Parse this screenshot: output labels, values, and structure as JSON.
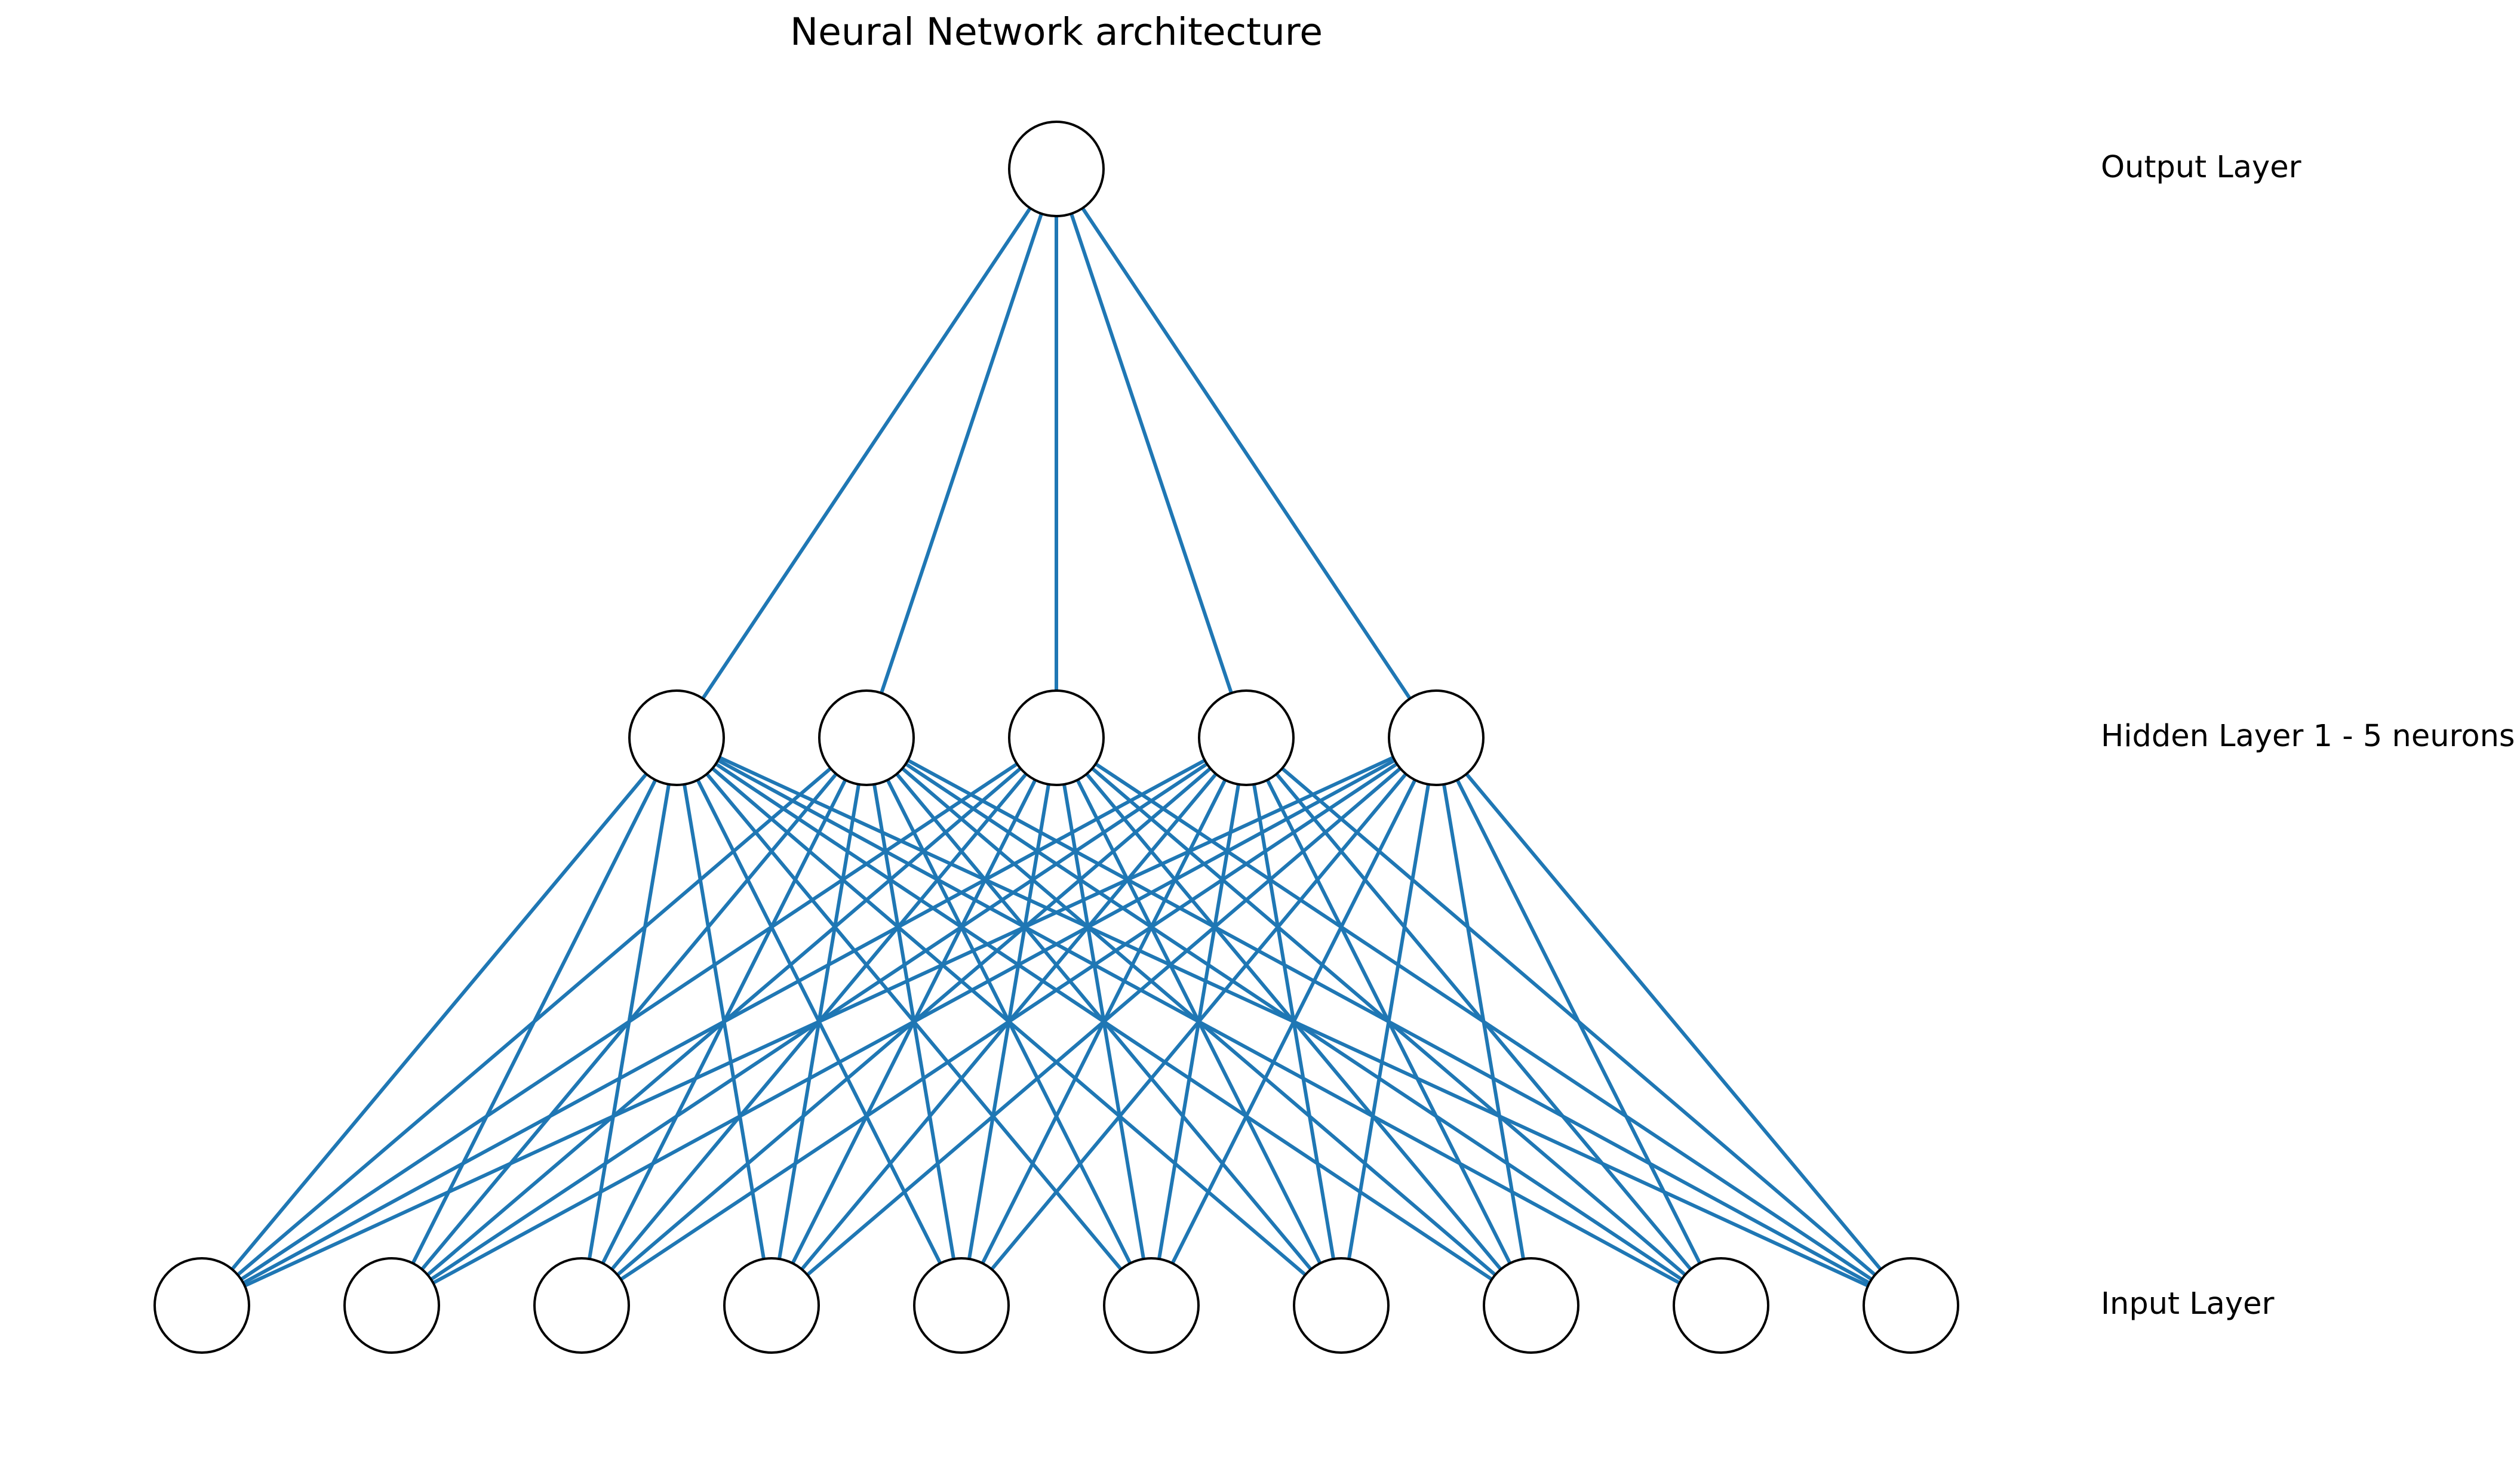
{
  "diagram": {
    "title": "Neural Network architecture",
    "edge_color": "#1f77b4",
    "node_fill": "#ffffff",
    "node_stroke": "#000000",
    "layers": [
      {
        "key": "input",
        "label": "Input Layer",
        "neurons": 10
      },
      {
        "key": "hidden1",
        "label": "Hidden Layer 1 - 5 neurons",
        "neurons": 5
      },
      {
        "key": "output",
        "label": "Output Layer",
        "neurons": 1
      }
    ],
    "connectivity": "fully-connected"
  }
}
